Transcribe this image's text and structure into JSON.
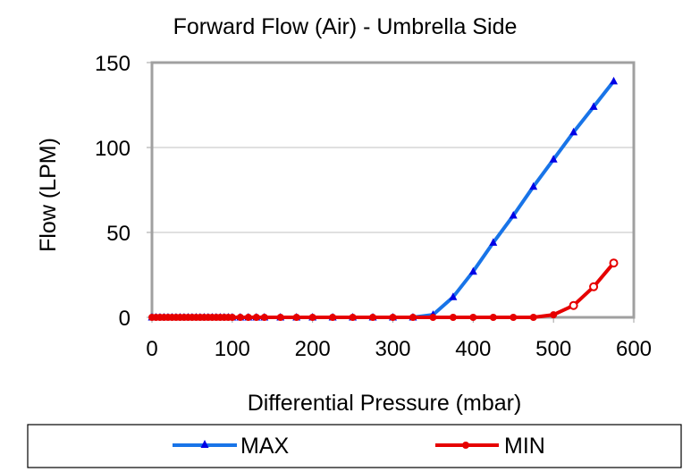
{
  "chart_data": {
    "type": "line",
    "title": "Forward Flow (Air) - Umbrella Side",
    "xlabel": "Differential Pressure (mbar)",
    "ylabel": "Flow (LPM)",
    "xlim": [
      0,
      600
    ],
    "ylim": [
      0,
      150
    ],
    "xticks": [
      0,
      100,
      200,
      300,
      400,
      500,
      600
    ],
    "yticks": [
      0,
      50,
      100,
      150
    ],
    "xtick_labels": [
      "0",
      "100",
      "200",
      "300",
      "400",
      "500",
      "600"
    ],
    "ytick_labels": [
      "0",
      "50",
      "100",
      "150"
    ],
    "grid": "horizontal",
    "legend_position": "bottom",
    "series": [
      {
        "name": "MAX",
        "color": "#1874e8",
        "marker_color": "#0000e6",
        "marker": "triangle",
        "x": [
          0,
          5,
          10,
          15,
          20,
          25,
          30,
          35,
          40,
          45,
          50,
          55,
          60,
          65,
          70,
          75,
          80,
          85,
          90,
          95,
          100,
          110,
          120,
          130,
          140,
          160,
          180,
          200,
          225,
          250,
          275,
          300,
          325,
          350,
          375,
          400,
          425,
          450,
          475,
          500,
          525,
          550,
          575
        ],
        "y": [
          0,
          0,
          0,
          0,
          0,
          0,
          0,
          0,
          0,
          0,
          0,
          0,
          0,
          0,
          0,
          0,
          0,
          0,
          0,
          0,
          0,
          0,
          0,
          0,
          0,
          0,
          0,
          0,
          0,
          0,
          0,
          0,
          0,
          1.5,
          12,
          27,
          44,
          60,
          77,
          93,
          109,
          124,
          139
        ]
      },
      {
        "name": "MIN",
        "color": "#e60000",
        "marker_color": "#e60000",
        "marker": "circle",
        "x": [
          0,
          5,
          10,
          15,
          20,
          25,
          30,
          35,
          40,
          45,
          50,
          55,
          60,
          65,
          70,
          75,
          80,
          85,
          90,
          95,
          100,
          110,
          120,
          130,
          140,
          160,
          180,
          200,
          225,
          250,
          275,
          300,
          325,
          350,
          375,
          400,
          425,
          450,
          475,
          500,
          525,
          550,
          575
        ],
        "y": [
          0,
          0,
          0,
          0,
          0,
          0,
          0,
          0,
          0,
          0,
          0,
          0,
          0,
          0,
          0,
          0,
          0,
          0,
          0,
          0,
          0,
          0,
          0,
          0,
          0,
          0,
          0,
          0,
          0,
          0,
          0,
          0,
          0,
          0,
          0,
          0,
          0,
          0,
          0,
          1.5,
          7,
          18,
          32
        ]
      }
    ]
  }
}
